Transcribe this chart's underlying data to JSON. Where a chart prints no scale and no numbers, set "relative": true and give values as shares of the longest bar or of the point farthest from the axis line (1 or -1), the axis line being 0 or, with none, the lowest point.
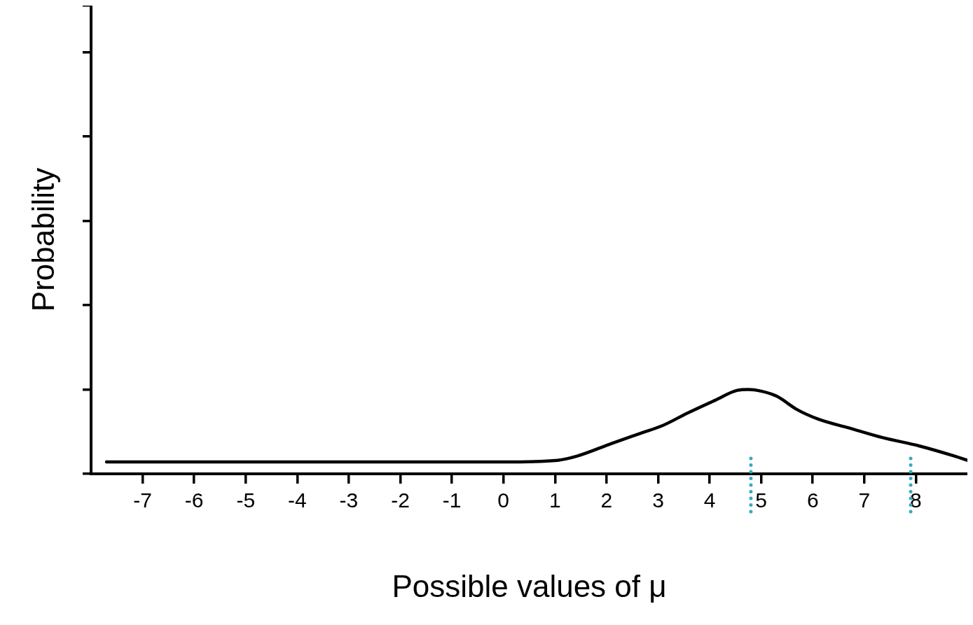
{
  "chart_data": {
    "type": "line",
    "xlabel": "Possible values of μ",
    "ylabel": "Probability",
    "relative": true,
    "x": [
      -7.7,
      -6,
      -4,
      -2,
      0,
      1.05,
      1.43,
      2.1,
      2.66,
      3.08,
      3.57,
      4.1,
      4.54,
      4.75,
      5.0,
      5.3,
      5.7,
      6.1,
      6.78,
      7.35,
      8.07,
      8.75,
      9
    ],
    "series": [
      {
        "color": "#000000",
        "values": [
          0.14,
          0.14,
          0.14,
          0.14,
          0.14,
          0.16,
          0.21,
          0.36,
          0.48,
          0.57,
          0.72,
          0.87,
          0.99,
          1,
          0.98,
          0.92,
          0.76,
          0.65,
          0.53,
          0.43,
          0.33,
          0.21,
          0.16
        ]
      }
    ],
    "xlim": [
      -8,
      9
    ],
    "xticks": [
      -7,
      -6,
      -5,
      -4,
      -3,
      -2,
      -1,
      0,
      1,
      2,
      3,
      4,
      5,
      6,
      7,
      8
    ],
    "grid": false,
    "legend": false,
    "ref_lines": [
      {
        "axis": "x",
        "value": 4.8,
        "color": "#3aa8c2",
        "line_style": "dotted"
      },
      {
        "axis": "x",
        "value": 7.9,
        "color": "#3aa8c2",
        "line_style": "dotted"
      }
    ]
  }
}
